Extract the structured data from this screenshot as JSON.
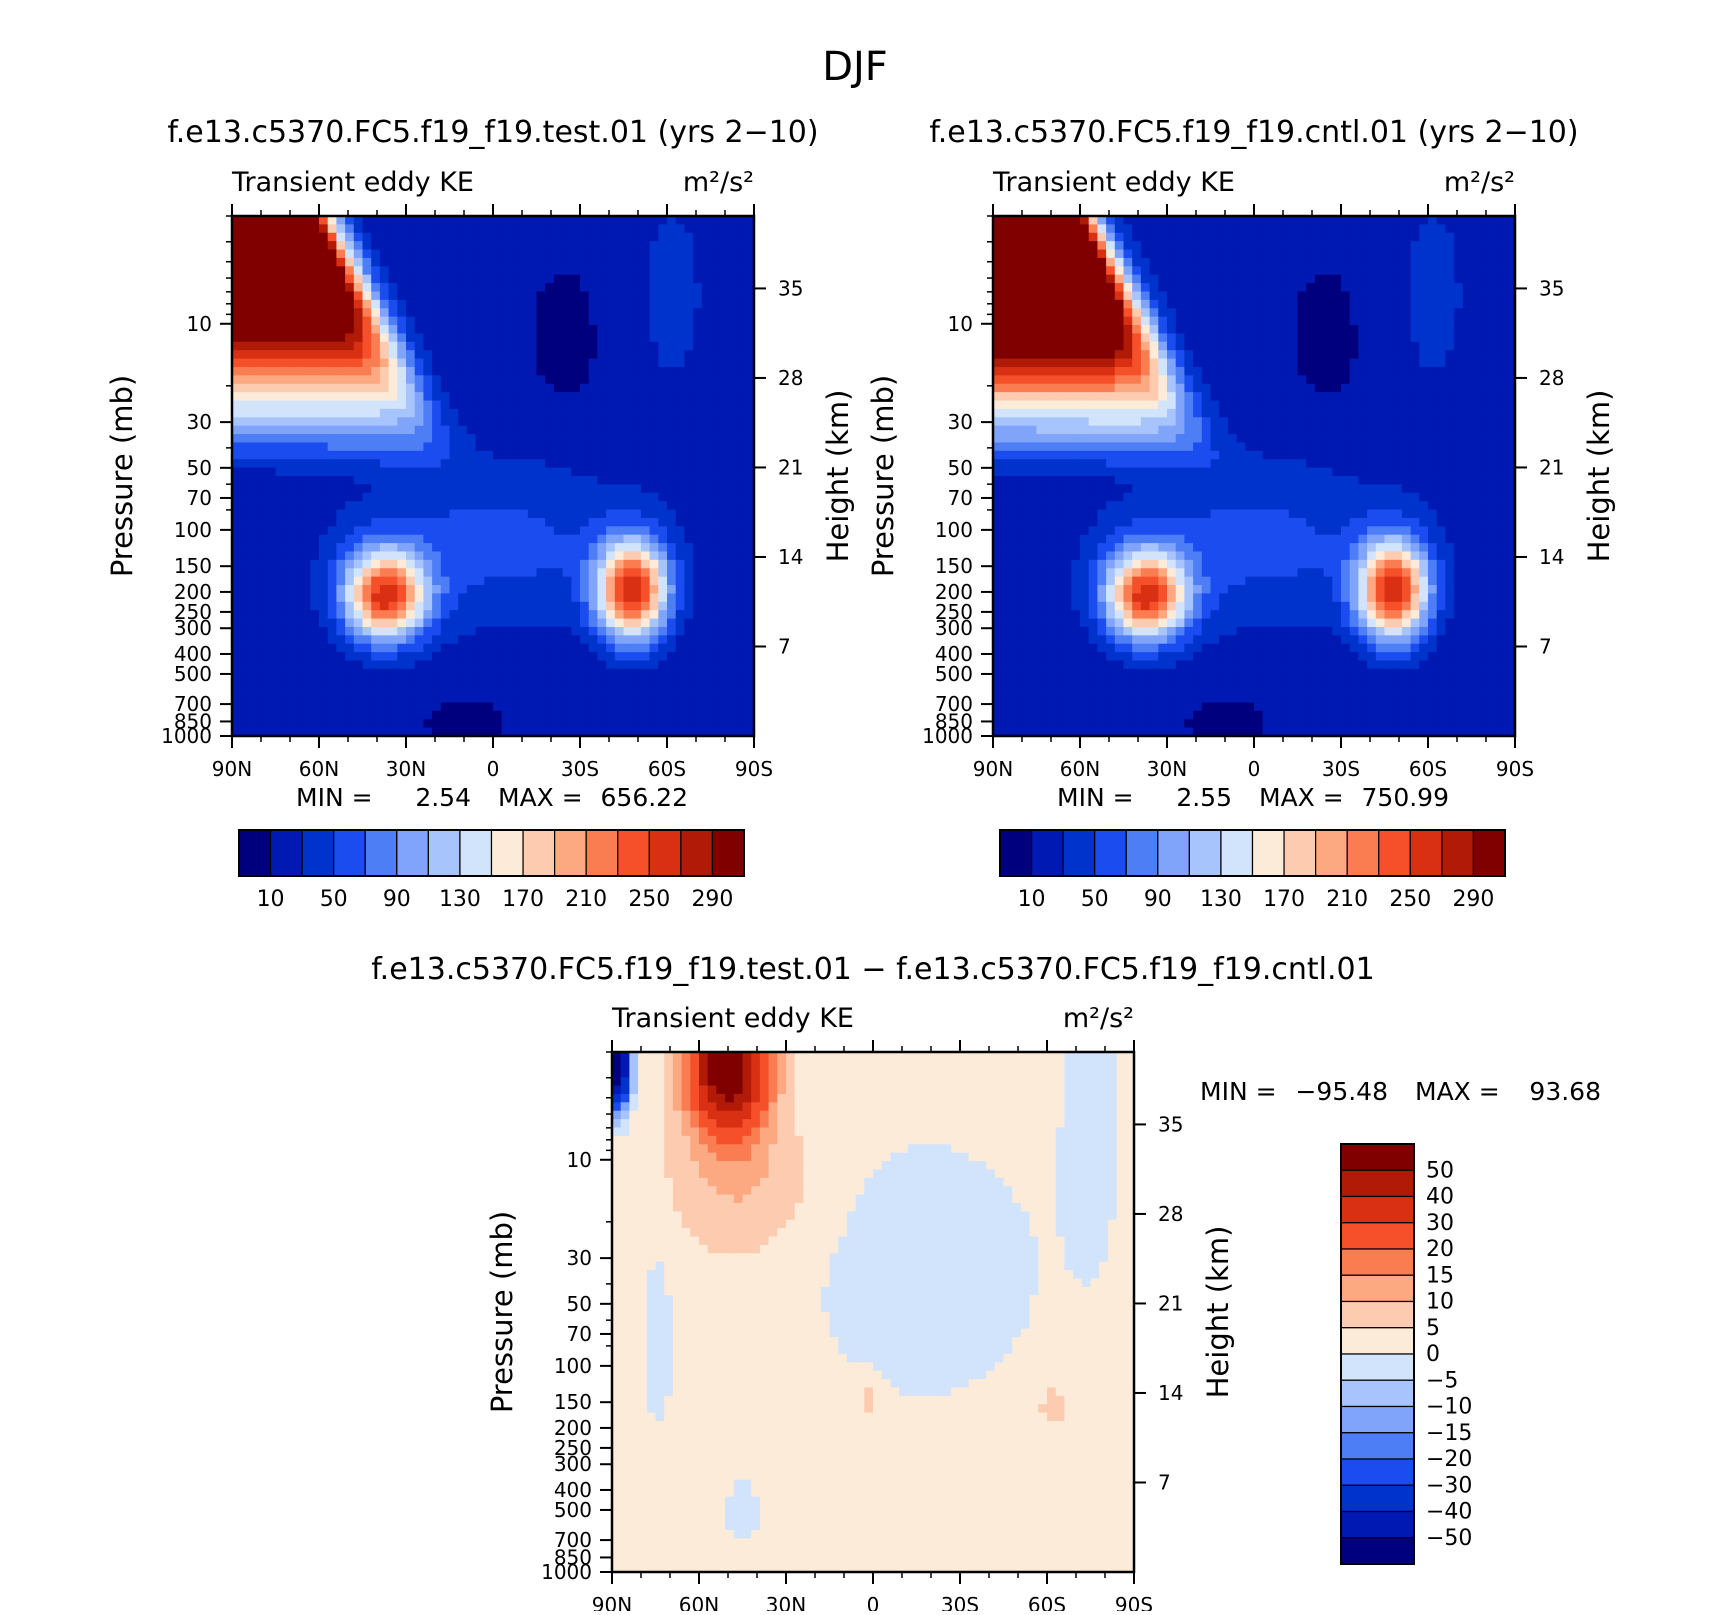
{
  "figure_title": "DJF",
  "colors": {
    "abs": [
      "#00007f",
      "#0019b2",
      "#0033cc",
      "#1a4cf0",
      "#4d7ef5",
      "#80a4fa",
      "#a8c4fc",
      "#d2e4fc",
      "#fdebd9",
      "#fdcbb0",
      "#fca880",
      "#fa7d52",
      "#f5502a",
      "#d93014",
      "#b01a06",
      "#800000"
    ],
    "diff": [
      "#00007f",
      "#0019b2",
      "#0033cc",
      "#1a4cf0",
      "#4d7ef5",
      "#80a4fa",
      "#a8c4fc",
      "#d2e4fc",
      "#fdebd9",
      "#fdcbb0",
      "#fca880",
      "#fa7d52",
      "#f5502a",
      "#d93014",
      "#b01a06",
      "#800000"
    ]
  },
  "chart_data": [
    {
      "type": "heatmap",
      "id": "test",
      "title": "f.e13.c5370.FC5.f19_f19.test.01 (yrs 2−10)",
      "subtitle_left": "Transient eddy KE",
      "units": "m²/s²",
      "xlabel": "",
      "ylabel": "Pressure (mb)",
      "y2label": "Height (km)",
      "xlim": [
        90,
        -90
      ],
      "ylim": [
        1000,
        3
      ],
      "x_ticks": [
        "90N",
        "60N",
        "30N",
        "0",
        "30S",
        "60S",
        "90S"
      ],
      "y_ticks": [
        "10",
        "30",
        "50",
        "70",
        "100",
        "150",
        "200",
        "250",
        "300",
        "400",
        "500",
        "700",
        "850",
        "1000"
      ],
      "y2_ticks": [
        "35",
        "28",
        "21",
        "14",
        "7"
      ],
      "min_label": "MIN =",
      "min_value": "2.54",
      "max_label": "MAX =",
      "max_value": "656.22",
      "colorbar_ticks": [
        "10",
        "50",
        "90",
        "130",
        "170",
        "210",
        "250",
        "290"
      ],
      "features": [
        {
          "name": "polar-vortex-nh",
          "lat": 85,
          "p": 3,
          "peak": 656
        },
        {
          "name": "nh-jet-maximum",
          "lat": 37,
          "p": 260,
          "peak": 235
        },
        {
          "name": "sh-jet-maximum",
          "lat": -48,
          "p": 250,
          "peak": 245
        }
      ]
    },
    {
      "type": "heatmap",
      "id": "cntl",
      "title": "f.e13.c5370.FC5.f19_f19.cntl.01 (yrs 2−10)",
      "subtitle_left": "Transient eddy KE",
      "units": "m²/s²",
      "xlabel": "",
      "ylabel": "Pressure (mb)",
      "y2label": "Height (km)",
      "xlim": [
        90,
        -90
      ],
      "ylim": [
        1000,
        3
      ],
      "x_ticks": [
        "90N",
        "60N",
        "30N",
        "0",
        "30S",
        "60S",
        "90S"
      ],
      "y_ticks": [
        "10",
        "30",
        "50",
        "70",
        "100",
        "150",
        "200",
        "250",
        "300",
        "400",
        "500",
        "700",
        "850",
        "1000"
      ],
      "y2_ticks": [
        "35",
        "28",
        "21",
        "14",
        "7"
      ],
      "min_label": "MIN =",
      "min_value": "2.55",
      "max_label": "MAX =",
      "max_value": "750.99",
      "colorbar_ticks": [
        "10",
        "50",
        "90",
        "130",
        "170",
        "210",
        "250",
        "290"
      ],
      "features": [
        {
          "name": "polar-vortex-nh",
          "lat": 85,
          "p": 3,
          "peak": 751
        },
        {
          "name": "nh-jet-maximum",
          "lat": 37,
          "p": 260,
          "peak": 235
        },
        {
          "name": "sh-jet-maximum",
          "lat": -48,
          "p": 250,
          "peak": 245
        }
      ]
    },
    {
      "type": "heatmap",
      "id": "diff",
      "title": "f.e13.c5370.FC5.f19_f19.test.01 − f.e13.c5370.FC5.f19_f19.cntl.01",
      "subtitle_left": "Transient eddy KE",
      "units": "m²/s²",
      "xlabel": "",
      "ylabel": "Pressure (mb)",
      "y2label": "Height (km)",
      "xlim": [
        90,
        -90
      ],
      "ylim": [
        1000,
        3
      ],
      "x_ticks": [
        "90N",
        "60N",
        "30N",
        "0",
        "30S",
        "60S",
        "90S"
      ],
      "y_ticks": [
        "10",
        "30",
        "50",
        "70",
        "100",
        "150",
        "200",
        "250",
        "300",
        "400",
        "500",
        "700",
        "850",
        "1000"
      ],
      "y2_ticks": [
        "35",
        "28",
        "21",
        "14",
        "7"
      ],
      "min_label": "MIN =",
      "min_value": "−95.48",
      "max_label": "MAX =",
      "max_value": "93.68",
      "colorbar_ticks": [
        "50",
        "40",
        "30",
        "20",
        "15",
        "10",
        "5",
        "0",
        "−5",
        "−10",
        "−15",
        "−20",
        "−30",
        "−40",
        "−50"
      ],
      "features": [
        {
          "name": "nh-polar-negative",
          "lat": 88,
          "p": 4,
          "peak": -95
        },
        {
          "name": "nh-stratosphere-positive",
          "lat": 50,
          "p": 4,
          "peak": 94
        }
      ]
    }
  ]
}
